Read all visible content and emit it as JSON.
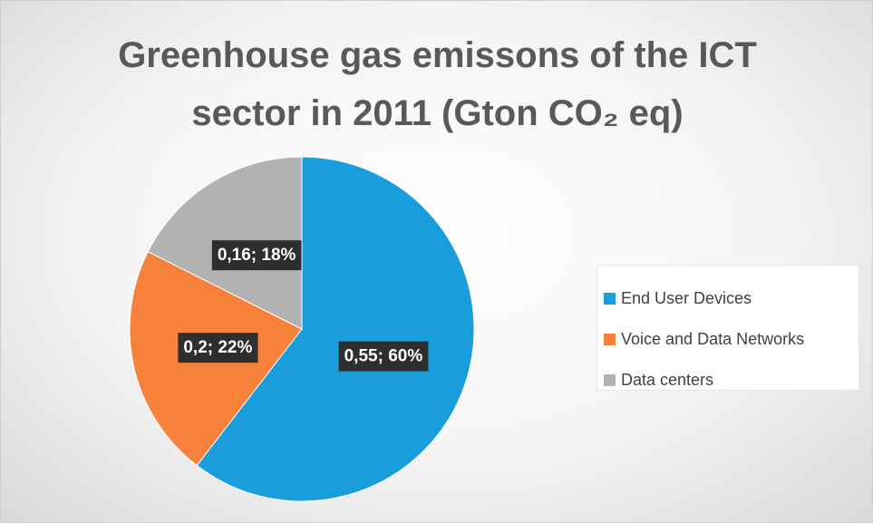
{
  "chart_data": {
    "type": "pie",
    "title": "Greenhouse gas emissons of the ICT sector in 2011 (Gton CO₂ eq)",
    "categories": [
      "End User Devices",
      "Voice and Data Networks",
      "Data centers"
    ],
    "values": [
      0.55,
      0.2,
      0.16
    ],
    "value_labels": [
      "0,55; 60%",
      "0,2; 22%",
      "0,16; 18%"
    ],
    "colors": [
      "#1a9ddb",
      "#f5813a",
      "#b2b2b2"
    ],
    "legend": "right"
  }
}
